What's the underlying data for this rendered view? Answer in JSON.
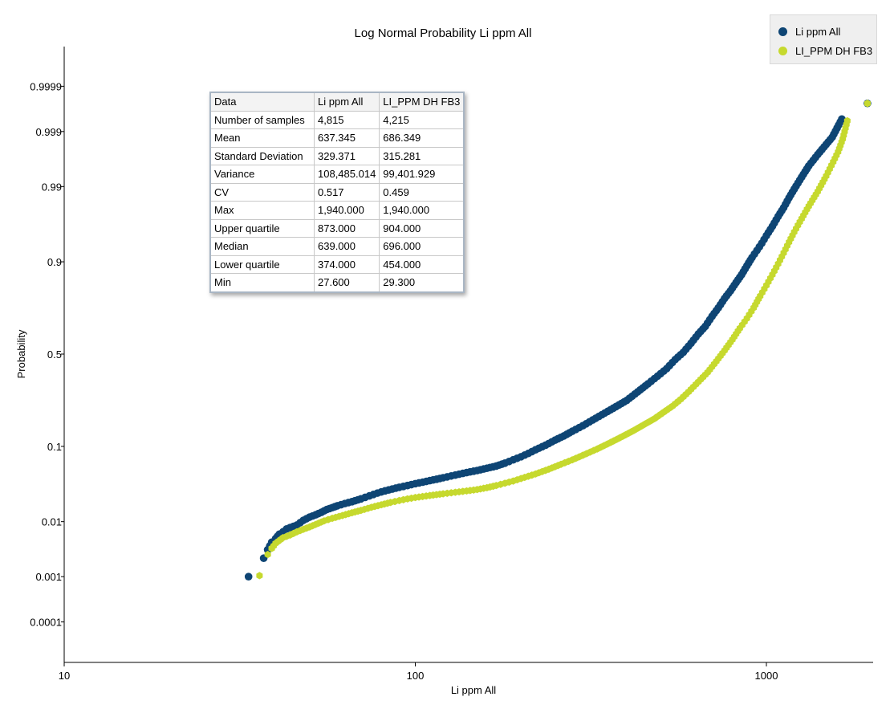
{
  "chart_data": {
    "type": "scatter",
    "title": "Log Normal Probability  Li ppm All",
    "xlabel": "Li ppm All",
    "ylabel": "Probability",
    "x_scale": "log",
    "y_scale": "probability",
    "xlim": [
      10,
      2000
    ],
    "ylim": [
      1e-05,
      0.99999
    ],
    "x_ticks": [
      10,
      100,
      1000
    ],
    "x_tick_labels": [
      "10",
      "100",
      "1000"
    ],
    "y_ticks": [
      0.0001,
      0.001,
      0.01,
      0.1,
      0.5,
      0.9,
      0.99,
      0.999,
      0.9999
    ],
    "y_tick_labels": [
      "0.0001",
      "0.001",
      "0.01",
      "0.1",
      "0.5",
      "0.9",
      "0.99",
      "0.999",
      "0.9999"
    ],
    "grid": false,
    "legend_position": "top-right",
    "series": [
      {
        "name": "Li ppm All",
        "color": "#0e4574",
        "marker": "circle",
        "points": [
          [
            33.5,
            0.001
          ],
          [
            37,
            0.0023
          ],
          [
            38,
            0.0033
          ],
          [
            39,
            0.0045
          ],
          [
            40,
            0.0052
          ],
          [
            41,
            0.0062
          ],
          [
            42,
            0.0068
          ],
          [
            43,
            0.0076
          ],
          [
            44,
            0.008
          ],
          [
            46,
            0.0088
          ],
          [
            48,
            0.0105
          ],
          [
            50,
            0.0118
          ],
          [
            52,
            0.0128
          ],
          [
            54,
            0.014
          ],
          [
            56,
            0.0155
          ],
          [
            58,
            0.0165
          ],
          [
            60,
            0.0176
          ],
          [
            63,
            0.019
          ],
          [
            66,
            0.0202
          ],
          [
            70,
            0.0222
          ],
          [
            74,
            0.0245
          ],
          [
            78,
            0.0268
          ],
          [
            82,
            0.0288
          ],
          [
            86,
            0.0305
          ],
          [
            90,
            0.0322
          ],
          [
            95,
            0.034
          ],
          [
            100,
            0.036
          ],
          [
            105,
            0.0377
          ],
          [
            110,
            0.0395
          ],
          [
            115,
            0.0412
          ],
          [
            120,
            0.043
          ],
          [
            130,
            0.0465
          ],
          [
            140,
            0.05
          ],
          [
            150,
            0.053
          ],
          [
            160,
            0.0565
          ],
          [
            170,
            0.06
          ],
          [
            180,
            0.065
          ],
          [
            190,
            0.071
          ],
          [
            200,
            0.077
          ],
          [
            210,
            0.084
          ],
          [
            220,
            0.092
          ],
          [
            235,
            0.103
          ],
          [
            250,
            0.116
          ],
          [
            265,
            0.128
          ],
          [
            280,
            0.142
          ],
          [
            300,
            0.16
          ],
          [
            320,
            0.18
          ],
          [
            340,
            0.2
          ],
          [
            360,
            0.22
          ],
          [
            380,
            0.24
          ],
          [
            400,
            0.26
          ],
          [
            430,
            0.3
          ],
          [
            460,
            0.34
          ],
          [
            490,
            0.38
          ],
          [
            520,
            0.42
          ],
          [
            550,
            0.47
          ],
          [
            580,
            0.51
          ],
          [
            610,
            0.56
          ],
          [
            640,
            0.61
          ],
          [
            670,
            0.65
          ],
          [
            700,
            0.7
          ],
          [
            730,
            0.74
          ],
          [
            760,
            0.78
          ],
          [
            790,
            0.81
          ],
          [
            820,
            0.84
          ],
          [
            850,
            0.865
          ],
          [
            880,
            0.89
          ],
          [
            910,
            0.91
          ],
          [
            940,
            0.925
          ],
          [
            970,
            0.938
          ],
          [
            1000,
            0.95
          ],
          [
            1040,
            0.962
          ],
          [
            1080,
            0.972
          ],
          [
            1120,
            0.979
          ],
          [
            1160,
            0.985
          ],
          [
            1200,
            0.989
          ],
          [
            1260,
            0.993
          ],
          [
            1320,
            0.9955
          ],
          [
            1400,
            0.9972
          ],
          [
            1480,
            0.9982
          ],
          [
            1540,
            0.9987
          ],
          [
            1640,
            0.99945
          ],
          [
            1940,
            0.99975
          ]
        ]
      },
      {
        "name": "LI_PPM DH FB3",
        "color": "#c6d92e",
        "marker": "hexagon",
        "points": [
          [
            36,
            0.00105
          ],
          [
            38,
            0.0027
          ],
          [
            39,
            0.0035
          ],
          [
            40,
            0.0043
          ],
          [
            42,
            0.0054
          ],
          [
            44,
            0.006
          ],
          [
            46,
            0.0068
          ],
          [
            48,
            0.0075
          ],
          [
            50,
            0.0082
          ],
          [
            52,
            0.009
          ],
          [
            55,
            0.0103
          ],
          [
            58,
            0.0113
          ],
          [
            62,
            0.0125
          ],
          [
            66,
            0.0138
          ],
          [
            70,
            0.015
          ],
          [
            75,
            0.0167
          ],
          [
            80,
            0.0182
          ],
          [
            85,
            0.0197
          ],
          [
            90,
            0.021
          ],
          [
            95,
            0.0222
          ],
          [
            100,
            0.0232
          ],
          [
            110,
            0.0248
          ],
          [
            120,
            0.0262
          ],
          [
            130,
            0.0275
          ],
          [
            140,
            0.0287
          ],
          [
            150,
            0.03
          ],
          [
            160,
            0.0318
          ],
          [
            170,
            0.034
          ],
          [
            180,
            0.0365
          ],
          [
            190,
            0.039
          ],
          [
            200,
            0.042
          ],
          [
            220,
            0.048
          ],
          [
            240,
            0.055
          ],
          [
            260,
            0.063
          ],
          [
            280,
            0.071
          ],
          [
            300,
            0.08
          ],
          [
            330,
            0.094
          ],
          [
            360,
            0.11
          ],
          [
            390,
            0.127
          ],
          [
            420,
            0.145
          ],
          [
            450,
            0.165
          ],
          [
            480,
            0.185
          ],
          [
            510,
            0.21
          ],
          [
            540,
            0.235
          ],
          [
            570,
            0.265
          ],
          [
            600,
            0.3
          ],
          [
            640,
            0.35
          ],
          [
            680,
            0.4
          ],
          [
            720,
            0.46
          ],
          [
            760,
            0.52
          ],
          [
            800,
            0.58
          ],
          [
            840,
            0.64
          ],
          [
            880,
            0.69
          ],
          [
            920,
            0.74
          ],
          [
            960,
            0.79
          ],
          [
            1000,
            0.83
          ],
          [
            1040,
            0.865
          ],
          [
            1080,
            0.895
          ],
          [
            1120,
            0.92
          ],
          [
            1160,
            0.94
          ],
          [
            1200,
            0.955
          ],
          [
            1260,
            0.97
          ],
          [
            1320,
            0.98
          ],
          [
            1400,
            0.988
          ],
          [
            1480,
            0.9933
          ],
          [
            1550,
            0.9962
          ],
          [
            1600,
            0.9975
          ],
          [
            1650,
            0.9986
          ],
          [
            1680,
            0.99915
          ],
          [
            1700,
            0.9994
          ],
          [
            1940,
            0.99975
          ]
        ]
      }
    ]
  },
  "stats_table": {
    "header": [
      "Data",
      "Li ppm All",
      "LI_PPM DH FB3"
    ],
    "rows": [
      [
        "Number of samples",
        "4,815",
        "4,215"
      ],
      [
        "Mean",
        "637.345",
        "686.349"
      ],
      [
        "Standard Deviation",
        "329.371",
        "315.281"
      ],
      [
        "Variance",
        "108,485.014",
        "99,401.929"
      ],
      [
        "CV",
        "0.517",
        "0.459"
      ],
      [
        "Max",
        "1,940.000",
        "1,940.000"
      ],
      [
        "Upper quartile",
        "873.000",
        "904.000"
      ],
      [
        "Median",
        "639.000",
        "696.000"
      ],
      [
        "Lower quartile",
        "374.000",
        "454.000"
      ],
      [
        "Min",
        "27.600",
        "29.300"
      ]
    ]
  }
}
